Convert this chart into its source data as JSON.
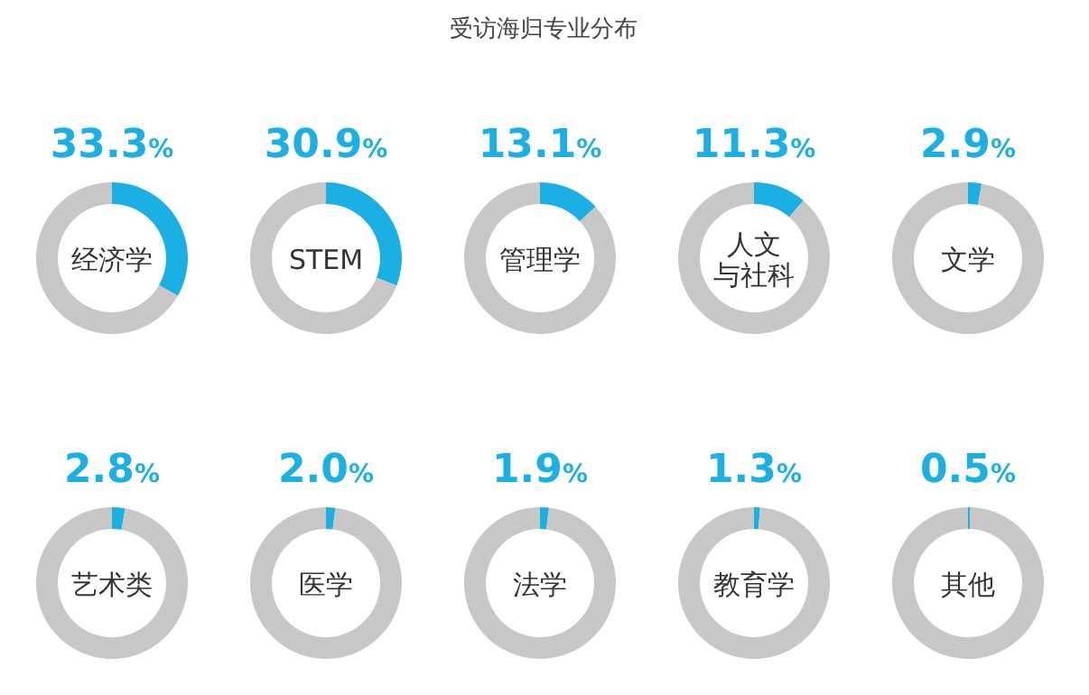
{
  "chart_data": [
    {
      "type": "other",
      "title": "受访海归专业分布"
    },
    {
      "type": "donut",
      "title": "经济学",
      "categories": [
        null,
        null
      ],
      "values": [
        33.3,
        66.7
      ],
      "colors": [
        "#1ab0e4",
        "#c9c7c5"
      ],
      "value_labels": [
        "33.3%",
        null
      ]
    },
    {
      "type": "donut",
      "title": "STEM",
      "categories": [
        null,
        null
      ],
      "values": [
        30.9,
        69.1
      ],
      "colors": [
        "#1ab0e4",
        "#c9c7c5"
      ],
      "value_labels": [
        "30.9%",
        null
      ]
    },
    {
      "type": "donut",
      "title": "管理学",
      "categories": [
        null,
        null
      ],
      "values": [
        13.1,
        86.9
      ],
      "colors": [
        "#1ab0e4",
        "#c9c7c5"
      ],
      "value_labels": [
        "13.1%",
        null
      ]
    },
    {
      "type": "donut",
      "title": "人文与社科",
      "categories": [
        null,
        null
      ],
      "values": [
        11.3,
        88.7
      ],
      "colors": [
        "#1ab0e4",
        "#c9c7c5"
      ],
      "value_labels": [
        "11.3%",
        null
      ]
    },
    {
      "type": "donut",
      "title": "文学",
      "categories": [
        null,
        null
      ],
      "values": [
        2.9,
        97.1
      ],
      "colors": [
        "#1ab0e4",
        "#c9c7c5"
      ],
      "value_labels": [
        "2.9%",
        null
      ]
    },
    {
      "type": "donut",
      "title": "艺术类",
      "categories": [
        null,
        null
      ],
      "values": [
        2.8,
        97.2
      ],
      "colors": [
        "#1ab0e4",
        "#c9c7c5"
      ],
      "value_labels": [
        "2.8%",
        null
      ]
    },
    {
      "type": "donut",
      "title": "医学",
      "categories": [
        null,
        null
      ],
      "values": [
        2.0,
        98.0
      ],
      "colors": [
        "#1ab0e4",
        "#c9c7c5"
      ],
      "value_labels": [
        "2.0%",
        null
      ]
    },
    {
      "type": "donut",
      "title": "法学",
      "categories": [
        null,
        null
      ],
      "values": [
        1.9,
        98.1
      ],
      "colors": [
        "#1ab0e4",
        "#c9c7c5"
      ],
      "value_labels": [
        "1.9%",
        null
      ]
    },
    {
      "type": "donut",
      "title": "教育学",
      "categories": [
        null,
        null
      ],
      "values": [
        1.3,
        98.7
      ],
      "colors": [
        "#1ab0e4",
        "#c9c7c5"
      ],
      "value_labels": [
        "1.3%",
        null
      ]
    },
    {
      "type": "donut",
      "title": "其他",
      "categories": [
        null,
        null
      ],
      "values": [
        0.5,
        99.5
      ],
      "colors": [
        "#1ab0e4",
        "#c9c7c5"
      ],
      "value_labels": [
        "0.5%",
        null
      ]
    }
  ]
}
